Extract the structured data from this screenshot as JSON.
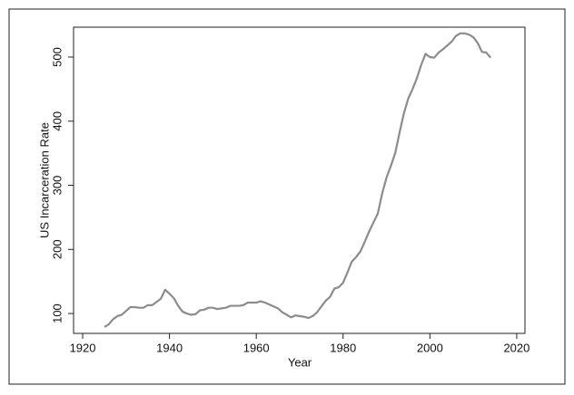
{
  "chart_data": {
    "type": "line",
    "x_label": "Year",
    "y_label": "US Incarceration Rate",
    "x": [
      1925,
      1926,
      1927,
      1928,
      1929,
      1930,
      1931,
      1932,
      1933,
      1934,
      1935,
      1936,
      1937,
      1938,
      1939,
      1940,
      1941,
      1942,
      1943,
      1944,
      1945,
      1946,
      1947,
      1948,
      1949,
      1950,
      1951,
      1952,
      1953,
      1954,
      1955,
      1956,
      1957,
      1958,
      1959,
      1960,
      1961,
      1962,
      1963,
      1964,
      1965,
      1966,
      1967,
      1968,
      1969,
      1970,
      1971,
      1972,
      1973,
      1974,
      1975,
      1976,
      1977,
      1978,
      1979,
      1980,
      1981,
      1982,
      1983,
      1984,
      1985,
      1986,
      1987,
      1988,
      1989,
      1990,
      1991,
      1992,
      1993,
      1994,
      1995,
      1996,
      1997,
      1998,
      1999,
      2000,
      2001,
      2002,
      2003,
      2004,
      2005,
      2006,
      2007,
      2008,
      2009,
      2010,
      2011,
      2012,
      2013,
      2014
    ],
    "values": [
      79,
      83,
      91,
      96,
      98,
      104,
      110,
      110,
      109,
      109,
      113,
      113,
      118,
      123,
      137,
      131,
      124,
      112,
      103,
      100,
      98,
      99,
      105,
      106,
      109,
      109,
      107,
      108,
      109,
      112,
      112,
      112,
      113,
      117,
      117,
      117,
      119,
      117,
      114,
      111,
      108,
      102,
      98,
      94,
      97,
      96,
      95,
      93,
      96,
      102,
      111,
      120,
      126,
      139,
      141,
      148,
      164,
      181,
      188,
      197,
      212,
      228,
      242,
      256,
      287,
      312,
      330,
      350,
      382,
      412,
      435,
      450,
      467,
      488,
      505,
      500,
      499,
      507,
      512,
      518,
      524,
      533,
      537,
      537,
      535,
      531,
      522,
      508,
      507,
      499
    ],
    "color": "#8c8c8c",
    "xlim": [
      1917.9,
      2021.9
    ],
    "xticks": [
      1920,
      1940,
      1960,
      1980,
      2000,
      2020
    ],
    "ylim": [
      69,
      546.6
    ],
    "yticks": [
      100,
      200,
      300,
      400,
      500
    ]
  }
}
